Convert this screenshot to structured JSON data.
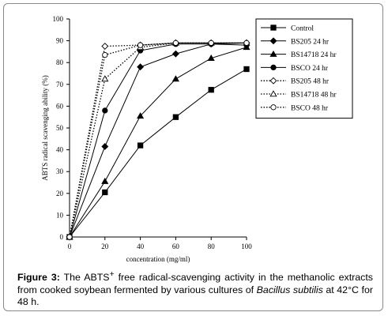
{
  "chart_data": {
    "type": "line",
    "xlabel": "concentration (mg/ml)",
    "ylabel": "ABTS radical scavenging ability (%)",
    "xlim": [
      0,
      100
    ],
    "ylim": [
      0,
      100
    ],
    "xticks": [
      0,
      20,
      40,
      60,
      80,
      100
    ],
    "yticks": [
      0,
      10,
      20,
      30,
      40,
      50,
      60,
      70,
      80,
      90,
      100
    ],
    "grid": false,
    "legend_position": "top-right",
    "x": [
      0,
      20,
      40,
      60,
      80,
      100
    ],
    "series": [
      {
        "name": "Control",
        "marker": "square",
        "line": "solid",
        "values": [
          0,
          20.5,
          42,
          55,
          67.5,
          77
        ]
      },
      {
        "name": "BS205 24 hr",
        "marker": "diamond",
        "line": "solid",
        "values": [
          0,
          41.5,
          78,
          84,
          88.5,
          89
        ]
      },
      {
        "name": "BS14718 24 hr",
        "marker": "triangle",
        "line": "solid",
        "values": [
          0,
          25.5,
          55.5,
          72.5,
          82,
          87
        ]
      },
      {
        "name": "BSCO 24 hr",
        "marker": "circle",
        "line": "solid",
        "values": [
          0,
          58,
          85.5,
          88.5,
          88.5,
          88
        ]
      },
      {
        "name": "BS205 48 hr",
        "marker": "diamond-open",
        "line": "dotted",
        "values": [
          0,
          87.5,
          88,
          89,
          89,
          89
        ]
      },
      {
        "name": "BS14718 48 hr",
        "marker": "triangle-open",
        "line": "dotted",
        "values": [
          0,
          72.5,
          87,
          89,
          89,
          89
        ]
      },
      {
        "name": "BSCO 48 hr",
        "marker": "circle-open",
        "line": "dotted",
        "values": [
          0,
          83.5,
          88,
          89,
          89,
          89
        ]
      }
    ]
  },
  "caption": {
    "label": "Figure 3:",
    "text_1": " The ABTS",
    "superscript": "+",
    "text_2": " free radical-scavenging activity in the methanolic extracts from cooked soybean fermented by various cultures of ",
    "species": "Bacillus subtilis",
    "text_3": " at 42°C for 48 h."
  }
}
